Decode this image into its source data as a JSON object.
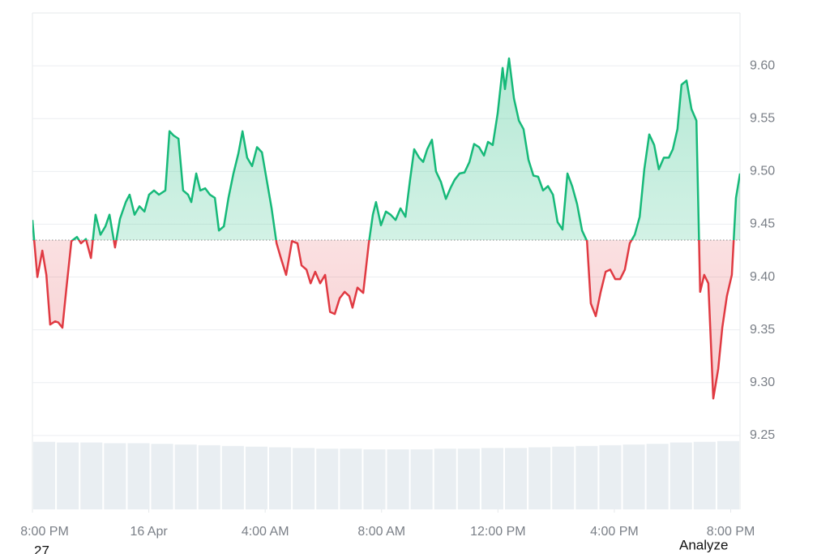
{
  "chart_data": {
    "type": "baseline",
    "xlim": [
      0,
      24.32
    ],
    "ylim": [
      9.18,
      9.65
    ],
    "xticks": [
      {
        "value": 0,
        "label": "8:00 PM"
      },
      {
        "value": 4,
        "label": "16 Apr"
      },
      {
        "value": 8,
        "label": "4:00 AM"
      },
      {
        "value": 12,
        "label": "8:00 AM"
      },
      {
        "value": 16,
        "label": "12:00 PM"
      },
      {
        "value": 20,
        "label": "4:00 PM"
      },
      {
        "value": 24,
        "label": "8:00 PM"
      }
    ],
    "yticks": [
      9.25,
      {
        "value": 9.3,
        "label": "9.30"
      },
      9.35,
      {
        "value": 9.4,
        "label": "9.40"
      },
      9.45,
      {
        "value": 9.5,
        "label": "9.50"
      },
      9.55,
      {
        "value": 9.6,
        "label": "9.60"
      }
    ],
    "grid": true,
    "baseline": 9.435,
    "up_color": "#16b979",
    "down_color": "#e03a42",
    "x": [
      0,
      0.17,
      0.34,
      0.48,
      0.61,
      0.78,
      0.89,
      1.03,
      1.17,
      1.34,
      1.53,
      1.67,
      1.84,
      2.01,
      2.17,
      2.34,
      2.51,
      2.65,
      2.84,
      3.01,
      3.21,
      3.34,
      3.51,
      3.68,
      3.85,
      4.01,
      4.18,
      4.35,
      4.57,
      4.71,
      4.85,
      5.02,
      5.18,
      5.35,
      5.46,
      5.63,
      5.77,
      5.94,
      6.1,
      6.27,
      6.41,
      6.58,
      6.74,
      6.91,
      7.08,
      7.22,
      7.38,
      7.55,
      7.72,
      7.89,
      8.05,
      8.22,
      8.39,
      8.55,
      8.72,
      8.92,
      9.11,
      9.25,
      9.42,
      9.56,
      9.72,
      9.89,
      10.06,
      10.23,
      10.39,
      10.56,
      10.73,
      10.89,
      11.0,
      11.17,
      11.37,
      11.56,
      11.7,
      11.81,
      11.98,
      12.15,
      12.31,
      12.48,
      12.65,
      12.82,
      12.98,
      13.12,
      13.29,
      13.43,
      13.57,
      13.73,
      13.87,
      14.04,
      14.21,
      14.38,
      14.51,
      14.68,
      14.85,
      15.02,
      15.18,
      15.35,
      15.52,
      15.66,
      15.82,
      15.99,
      16.16,
      16.24,
      16.38,
      16.55,
      16.72,
      16.88,
      17.05,
      17.22,
      17.38,
      17.55,
      17.72,
      17.89,
      18.05,
      18.22,
      18.39,
      18.55,
      18.72,
      18.89,
      19.06,
      19.19,
      19.36,
      19.53,
      19.7,
      19.86,
      20.03,
      20.2,
      20.36,
      20.53,
      20.7,
      20.87,
      21.03,
      21.2,
      21.37,
      21.53,
      21.7,
      21.87,
      22.01,
      22.17,
      22.31,
      22.48,
      22.65,
      22.82,
      22.95,
      23.09,
      23.23,
      23.4,
      23.57,
      23.71,
      23.87,
      24.04,
      24.18,
      24.32
    ],
    "values": [
      9.454,
      9.4,
      9.425,
      9.402,
      9.355,
      9.358,
      9.357,
      9.352,
      9.39,
      9.434,
      9.438,
      9.432,
      9.436,
      9.418,
      9.459,
      9.44,
      9.448,
      9.459,
      9.428,
      9.455,
      9.471,
      9.478,
      9.459,
      9.467,
      9.462,
      9.478,
      9.482,
      9.478,
      9.482,
      9.538,
      9.534,
      9.531,
      9.482,
      9.478,
      9.471,
      9.498,
      9.482,
      9.484,
      9.478,
      9.475,
      9.444,
      9.448,
      9.475,
      9.498,
      9.517,
      9.538,
      9.513,
      9.505,
      9.523,
      9.518,
      9.492,
      9.465,
      9.432,
      9.417,
      9.402,
      9.434,
      9.432,
      9.411,
      9.407,
      9.394,
      9.405,
      9.394,
      9.402,
      9.367,
      9.365,
      9.38,
      9.386,
      9.382,
      9.371,
      9.39,
      9.385,
      9.432,
      9.459,
      9.471,
      9.449,
      9.462,
      9.459,
      9.454,
      9.465,
      9.457,
      9.492,
      9.521,
      9.513,
      9.509,
      9.521,
      9.53,
      9.5,
      9.49,
      9.474,
      9.485,
      9.492,
      9.498,
      9.499,
      9.509,
      9.526,
      9.523,
      9.515,
      9.528,
      9.525,
      9.555,
      9.598,
      9.578,
      9.607,
      9.569,
      9.548,
      9.54,
      9.511,
      9.496,
      9.495,
      9.482,
      9.486,
      9.478,
      9.452,
      9.445,
      9.498,
      9.486,
      9.469,
      9.444,
      9.434,
      9.375,
      9.363,
      9.386,
      9.405,
      9.407,
      9.398,
      9.398,
      9.407,
      9.432,
      9.44,
      9.457,
      9.502,
      9.535,
      9.525,
      9.502,
      9.513,
      9.513,
      9.521,
      9.54,
      9.582,
      9.586,
      9.559,
      9.548,
      9.386,
      9.402,
      9.394,
      9.285,
      9.313,
      9.352,
      9.382,
      9.402,
      9.475,
      9.498
    ],
    "volume": {
      "color": "#e9eef2",
      "values": [
        98,
        97,
        97,
        96,
        96,
        95,
        94,
        93,
        92,
        91,
        90,
        89,
        88,
        88,
        87,
        87,
        87,
        88,
        88,
        89,
        89,
        90,
        91,
        92,
        93,
        94,
        95,
        97,
        98,
        99
      ]
    }
  },
  "footer": {
    "left": "27",
    "right": "Analyze"
  }
}
